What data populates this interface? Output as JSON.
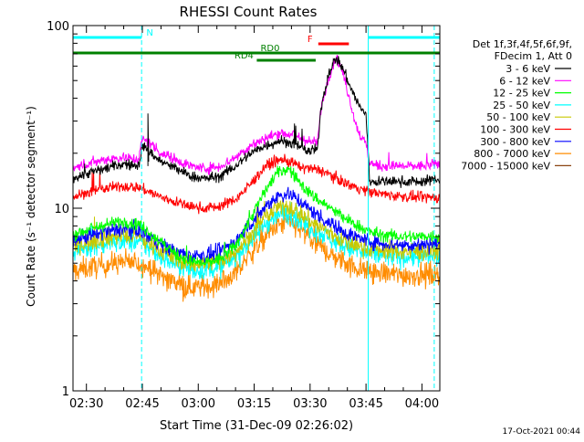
{
  "chart_data": {
    "type": "line",
    "title": "RHESSI Count Rates",
    "xlabel": "Start Time (31-Dec-09 02:26:02)",
    "ylabel": "Count Rate (s⁻¹ detector segment⁻¹)",
    "x_ticks": [
      "02:30",
      "02:45",
      "03:00",
      "03:15",
      "03:30",
      "03:45",
      "04:00"
    ],
    "x_range_minutes": [
      146.4,
      244.8
    ],
    "x_tick_minutes": [
      150,
      165,
      180,
      195,
      210,
      225,
      240
    ],
    "y_scale": "log",
    "ylim": [
      1,
      100
    ],
    "y_ticks": [
      "1",
      "10",
      "100"
    ],
    "y_tick_values": [
      1,
      10,
      100
    ],
    "timestamp": "17-Oct-2021 00:44",
    "legend": {
      "placement": "right",
      "header": [
        "Det 1f,3f,4f,5f,6f,9f,",
        "FDecim 1, Att 0"
      ]
    },
    "series": [
      {
        "name": "3 - 6 keV",
        "color": "#000000",
        "x": [
          146.4,
          150,
          155,
          160,
          164,
          165,
          168,
          170,
          174,
          178,
          182,
          186,
          190,
          194,
          198,
          202,
          206,
          208,
          210,
          212,
          213,
          215,
          217,
          219,
          221,
          223,
          224,
          225,
          226,
          230,
          235,
          240,
          244.8
        ],
        "y": [
          14.5,
          15.5,
          16.5,
          17.5,
          17,
          22,
          19.5,
          18,
          16.5,
          15,
          14.5,
          15,
          17,
          20,
          22,
          23.5,
          22.5,
          21,
          20.5,
          21,
          36,
          55,
          67,
          57,
          45,
          37,
          34,
          33,
          14,
          14,
          14,
          14,
          14.5
        ]
      },
      {
        "name": "6 - 12 keV",
        "color": "#ff00ff",
        "x": [
          146.4,
          150,
          155,
          160,
          164,
          165,
          168,
          170,
          174,
          178,
          182,
          186,
          190,
          194,
          198,
          202,
          206,
          208,
          210,
          212,
          213,
          215,
          217,
          219,
          221,
          223,
          224,
          225,
          226,
          230,
          235,
          240,
          244.8
        ],
        "y": [
          16.5,
          17.5,
          18.5,
          19,
          18.5,
          24,
          22,
          20,
          18.5,
          17,
          16.5,
          17,
          19,
          22,
          24,
          26,
          25,
          24,
          23,
          23,
          36,
          52,
          68,
          54,
          36,
          26,
          24,
          22.5,
          17.5,
          17,
          17,
          17,
          17.5
        ]
      },
      {
        "name": "12 - 25 keV",
        "color": "#00ff00",
        "x": [
          146.4,
          150,
          155,
          160,
          164,
          166,
          170,
          174,
          178,
          182,
          186,
          190,
          194,
          198,
          201,
          204,
          206,
          208,
          210,
          212,
          214,
          216,
          218,
          220,
          222,
          224,
          226,
          230,
          235,
          240,
          244.8
        ],
        "y": [
          7.2,
          7.6,
          8.1,
          8.5,
          8.2,
          7.6,
          6.5,
          5.6,
          5.1,
          5.0,
          5.3,
          6.2,
          8.8,
          12.5,
          15.5,
          16.5,
          15,
          13.2,
          12,
          11.2,
          10.5,
          9.8,
          9.2,
          8.6,
          8.2,
          7.8,
          7.4,
          7.1,
          7.0,
          7.0,
          7.1
        ]
      },
      {
        "name": "25 - 50 keV",
        "color": "#00ffff",
        "x": [
          146.4,
          150,
          155,
          160,
          164,
          166,
          170,
          174,
          178,
          182,
          186,
          190,
          194,
          198,
          201,
          204,
          206,
          208,
          210,
          212,
          214,
          216,
          218,
          220,
          222,
          224,
          226,
          230,
          235,
          240,
          244.8
        ],
        "y": [
          5.8,
          6.1,
          6.4,
          6.6,
          6.5,
          6.2,
          5.5,
          4.9,
          4.6,
          4.6,
          4.8,
          5.4,
          6.6,
          8.2,
          9.2,
          9.4,
          9.0,
          8.4,
          7.9,
          7.5,
          7.1,
          6.7,
          6.4,
          6.1,
          5.9,
          5.7,
          5.6,
          5.5,
          5.4,
          5.4,
          5.5
        ]
      },
      {
        "name": "50 - 100 keV",
        "color": "#c8c800",
        "x": [
          146.4,
          150,
          155,
          160,
          164,
          166,
          170,
          174,
          178,
          182,
          186,
          190,
          194,
          198,
          201,
          204,
          206,
          208,
          210,
          212,
          214,
          216,
          218,
          220,
          222,
          224,
          226,
          230,
          235,
          240,
          244.8
        ],
        "y": [
          6.2,
          6.5,
          6.9,
          7.1,
          7.0,
          6.6,
          5.9,
          5.3,
          5.0,
          5.0,
          5.2,
          5.8,
          7.1,
          8.9,
          10.0,
          10.3,
          9.8,
          9.1,
          8.5,
          8.0,
          7.6,
          7.2,
          6.8,
          6.5,
          6.3,
          6.1,
          6.0,
          5.9,
          5.8,
          5.8,
          5.9
        ]
      },
      {
        "name": "100 - 300 keV",
        "color": "#ff0000",
        "x": [
          146.4,
          150,
          155,
          160,
          164,
          166,
          170,
          174,
          178,
          182,
          186,
          190,
          194,
          198,
          202,
          206,
          208,
          210,
          212,
          214,
          216,
          218,
          220,
          222,
          224,
          226,
          230,
          235,
          240,
          244.8
        ],
        "y": [
          11.5,
          12.2,
          12.8,
          13.2,
          13,
          12.5,
          11.5,
          10.8,
          10.2,
          10.0,
          10.3,
          11.2,
          13.5,
          17,
          18.5,
          17.5,
          16.5,
          16.5,
          16.2,
          15.8,
          15,
          14.2,
          13.6,
          13.1,
          12.7,
          12.3,
          11.9,
          11.6,
          11.4,
          11.5
        ]
      },
      {
        "name": "300 - 800 keV",
        "color": "#0000ff",
        "x": [
          146.4,
          150,
          155,
          160,
          164,
          166,
          170,
          174,
          178,
          182,
          186,
          190,
          194,
          198,
          201,
          204,
          206,
          208,
          210,
          212,
          214,
          216,
          218,
          220,
          222,
          224,
          226,
          230,
          235,
          240,
          244.8
        ],
        "y": [
          6.6,
          7.0,
          7.4,
          7.7,
          7.6,
          7.2,
          6.4,
          5.8,
          5.5,
          5.5,
          5.8,
          6.6,
          8.2,
          10.2,
          11.6,
          12.0,
          11.5,
          10.6,
          9.8,
          9.2,
          8.6,
          8.1,
          7.7,
          7.3,
          7.0,
          6.8,
          6.6,
          6.4,
          6.3,
          6.3,
          6.4
        ]
      },
      {
        "name": "800 - 7000 keV",
        "color": "#ff8c00",
        "x": [
          146.4,
          150,
          155,
          160,
          164,
          166,
          170,
          174,
          178,
          182,
          186,
          190,
          194,
          198,
          201,
          204,
          206,
          208,
          210,
          212,
          214,
          216,
          218,
          220,
          222,
          224,
          226,
          230,
          235,
          240,
          244.8
        ],
        "y": [
          4.5,
          4.7,
          4.9,
          5.1,
          5.0,
          4.8,
          4.3,
          3.9,
          3.7,
          3.7,
          3.9,
          4.4,
          5.6,
          7.0,
          8.0,
          8.4,
          8.0,
          7.4,
          6.8,
          6.3,
          5.9,
          5.5,
          5.2,
          5.0,
          4.8,
          4.6,
          4.5,
          4.4,
          4.3,
          4.3,
          4.4
        ]
      },
      {
        "name": "7000 - 15000 keV",
        "color": "#8b4513",
        "x": [],
        "y": []
      }
    ],
    "markers": {
      "vlines_cyan_solid": [
        146.4,
        225.6,
        244.8
      ],
      "vlines_cyan_dashed": [
        164.8,
        243.3
      ],
      "flags": [
        {
          "label": "N",
          "color": "#00ffff",
          "x_start": 146.4,
          "x_end": 164.8
        },
        {
          "label": "",
          "color": "#00ffff",
          "x_start": 225.6,
          "x_end": 244.8
        },
        {
          "label": "RD0",
          "color": "#008000",
          "x_start": 146.4,
          "x_end": 244.8
        },
        {
          "label": "RD4",
          "color": "#008000",
          "x_start": 195.7,
          "x_end": 211.5
        },
        {
          "label": "F",
          "color": "#ff0000",
          "x_start": 212.2,
          "x_end": 220.4
        }
      ]
    }
  }
}
